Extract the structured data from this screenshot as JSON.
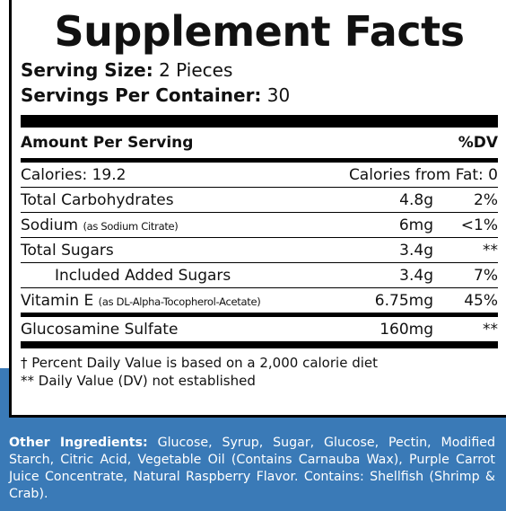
{
  "title": "Supplement Facts",
  "serving_size": {
    "label": "Serving Size:",
    "value": "2 Pieces"
  },
  "servings_per_container": {
    "label": "Servings Per Container:",
    "value": "30"
  },
  "header": {
    "amount": "Amount Per Serving",
    "dv": "%DV"
  },
  "calories": {
    "label": "Calories: 19.2",
    "from_fat": "Calories from Fat: 0"
  },
  "rows": [
    {
      "name": "Total Carbohydrates",
      "amount": "4.8g",
      "dv": "2%"
    },
    {
      "name": "Sodium",
      "note": "(as Sodium Citrate)",
      "amount": "6mg",
      "dv": "<1%"
    },
    {
      "name": "Total Sugars",
      "amount": "3.4g",
      "dv": "**"
    },
    {
      "name": "Included Added Sugars",
      "amount": "3.4g",
      "dv": "7%"
    },
    {
      "name": "Vitamin E",
      "note": "(as DL-Alpha-Tocopherol-Acetate)",
      "amount": "6.75mg",
      "dv": "45%"
    },
    {
      "name": "Glucosamine Sulfate",
      "amount": "160mg",
      "dv": "**"
    }
  ],
  "footnotes": [
    "† Percent Daily Value is based on a 2,000 calorie diet",
    "** Daily Value (DV) not established"
  ],
  "other_ingredients": {
    "label": "Other Ingredients:",
    "text": "Glucose, Syrup, Sugar, Glucose, Pectin, Modified Starch, Citric Acid, Vegetable Oil (Contains Carnauba Wax), Purple Carrot Juice Concentrate, Natural Raspberry Flavor. Contains: Shellfish (Shrimp & Crab)."
  }
}
